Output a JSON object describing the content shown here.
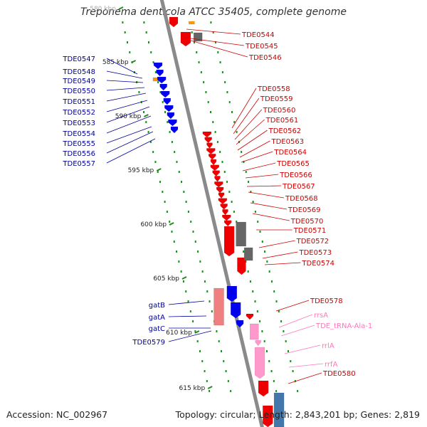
{
  "title": "Treponema denticola ATCC 35405, complete genome",
  "footer": {
    "accession": "Accession: NC_002967",
    "summary": "Topology: circular; Length: 2,843,201 bp; Genes: 2,819"
  },
  "colors": {
    "backbone": "#8a8a8a",
    "minus_strand_gene": "#0000ee",
    "plus_strand_gene": "#ee0000",
    "rna_gene": "#ff99cc",
    "pseudo_gene": "#666666",
    "ruler_tick": "#228b22",
    "left_label_text": "#000099",
    "right_label_text": "#cc0000",
    "rna_label_text": "#ff77bb"
  },
  "ruler": [
    {
      "label": "580 kbp",
      "faded": true
    },
    {
      "label": "585 kbp"
    },
    {
      "label": "590 kbp"
    },
    {
      "label": "595 kbp"
    },
    {
      "label": "600 kbp"
    },
    {
      "label": "605 kbp"
    },
    {
      "label": "610 kbp"
    },
    {
      "label": "615 kbp"
    }
  ],
  "left_labels": [
    "TDE0547",
    "TDE0548",
    "TDE0549",
    "TDE0550",
    "TDE0551",
    "TDE0552",
    "TDE0553",
    "TDE0554",
    "TDE0555",
    "TDE0556",
    "TDE0557",
    "gatB",
    "gatA",
    "gatC",
    "TDE0579"
  ],
  "right_labels": [
    "TDE0544",
    "TDE0545",
    "TDE0546",
    "TDE0558",
    "TDE0559",
    "TDE0560",
    "TDE0561",
    "TDE0562",
    "TDE0563",
    "TDE0564",
    "TDE0565",
    "TDE0566",
    "TDE0567",
    "TDE0568",
    "TDE0569",
    "TDE0570",
    "TDE0571",
    "TDE0572",
    "TDE0573",
    "TDE0574",
    "TDE0578",
    "rrsA",
    "TDE_tRNA-Ala-1",
    "rrlA",
    "rrfA",
    "TDE0580"
  ],
  "rna_labels": [
    "rrsA",
    "TDE_tRNA-Ala-1",
    "rrlA",
    "rrfA"
  ]
}
